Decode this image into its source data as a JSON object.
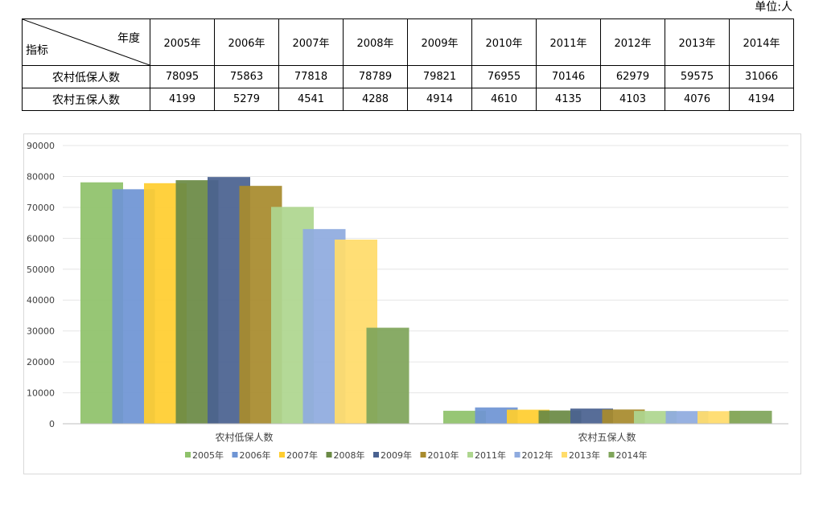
{
  "unit_label": "单位:人",
  "table": {
    "corner_top": "年度",
    "corner_bottom": "指标",
    "years": [
      "2005年",
      "2006年",
      "2007年",
      "2008年",
      "2009年",
      "2010年",
      "2011年",
      "2012年",
      "2013年",
      "2014年"
    ],
    "rows": [
      {
        "label": "农村低保人数",
        "values": [
          "78095",
          "75863",
          "77818",
          "78789",
          "79821",
          "76955",
          "70146",
          "62979",
          "59575",
          "31066"
        ]
      },
      {
        "label": "农村五保人数",
        "values": [
          "4199",
          "5279",
          "4541",
          "4288",
          "4914",
          "4610",
          "4135",
          "4103",
          "4076",
          "4194"
        ]
      }
    ]
  },
  "chart_data": {
    "type": "bar",
    "categories": [
      "农村低保人数",
      "农村五保人数"
    ],
    "series": [
      {
        "name": "2005年",
        "values": [
          78095,
          4199
        ],
        "color": "#8fc26b"
      },
      {
        "name": "2006年",
        "values": [
          75863,
          5279
        ],
        "color": "#6f95d4"
      },
      {
        "name": "2007年",
        "values": [
          77818,
          4541
        ],
        "color": "#ffcd2f"
      },
      {
        "name": "2008年",
        "values": [
          78789,
          4288
        ],
        "color": "#6a8a45"
      },
      {
        "name": "2009年",
        "values": [
          79821,
          4914
        ],
        "color": "#4a6290"
      },
      {
        "name": "2010年",
        "values": [
          76955,
          4610
        ],
        "color": "#a88b2d"
      },
      {
        "name": "2011年",
        "values": [
          70146,
          4135
        ],
        "color": "#aed68f"
      },
      {
        "name": "2012年",
        "values": [
          62979,
          4103
        ],
        "color": "#8fabdf"
      },
      {
        "name": "2013年",
        "values": [
          59575,
          4076
        ],
        "color": "#ffdc6a"
      },
      {
        "name": "2014年",
        "values": [
          31066,
          4194
        ],
        "color": "#7fa55a"
      }
    ],
    "ylim": [
      0,
      90000
    ],
    "yticks": [
      0,
      10000,
      20000,
      30000,
      40000,
      50000,
      60000,
      70000,
      80000,
      90000
    ],
    "grid": true,
    "legend": "bottom",
    "title": "",
    "xlabel": "",
    "ylabel": ""
  }
}
